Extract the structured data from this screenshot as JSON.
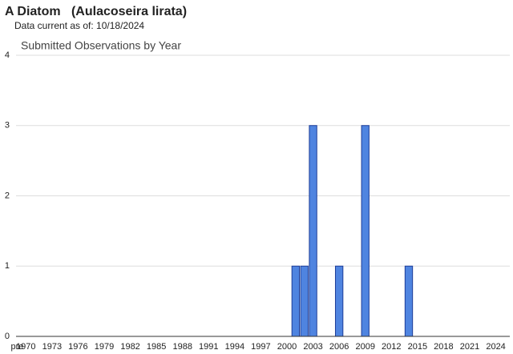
{
  "header": {
    "title": "A Diatom   (Aulacoseira lirata)",
    "subtitle": "Data current as of: 10/18/2024"
  },
  "chart_data": {
    "type": "bar",
    "title": "Submitted Observations by Year",
    "categories": [
      "pre",
      "1970",
      null,
      null,
      "1973",
      null,
      null,
      "1976",
      null,
      null,
      "1979",
      null,
      null,
      "1982",
      null,
      null,
      "1985",
      null,
      null,
      "1988",
      null,
      null,
      "1991",
      null,
      null,
      "1994",
      null,
      null,
      "1997",
      null,
      null,
      "2000",
      null,
      null,
      "2003",
      null,
      null,
      "2006",
      null,
      null,
      "2009",
      null,
      null,
      "2012",
      null,
      null,
      "2015",
      null,
      null,
      "2018",
      null,
      null,
      "2021",
      null,
      null,
      "2024"
    ],
    "values": [
      0,
      0,
      0,
      0,
      0,
      0,
      0,
      0,
      0,
      0,
      0,
      0,
      0,
      0,
      0,
      0,
      0,
      0,
      0,
      0,
      0,
      0,
      0,
      0,
      0,
      0,
      0,
      0,
      0,
      0,
      0,
      0,
      1,
      1,
      3,
      0,
      0,
      1,
      0,
      0,
      3,
      0,
      0,
      0,
      0,
      1,
      0,
      0,
      0,
      0,
      0,
      0,
      0,
      0,
      0,
      0
    ],
    "color": "#4f84e0",
    "ylim": [
      0,
      4
    ],
    "yticks": [
      0,
      1,
      2,
      3,
      4
    ],
    "grid": true
  }
}
